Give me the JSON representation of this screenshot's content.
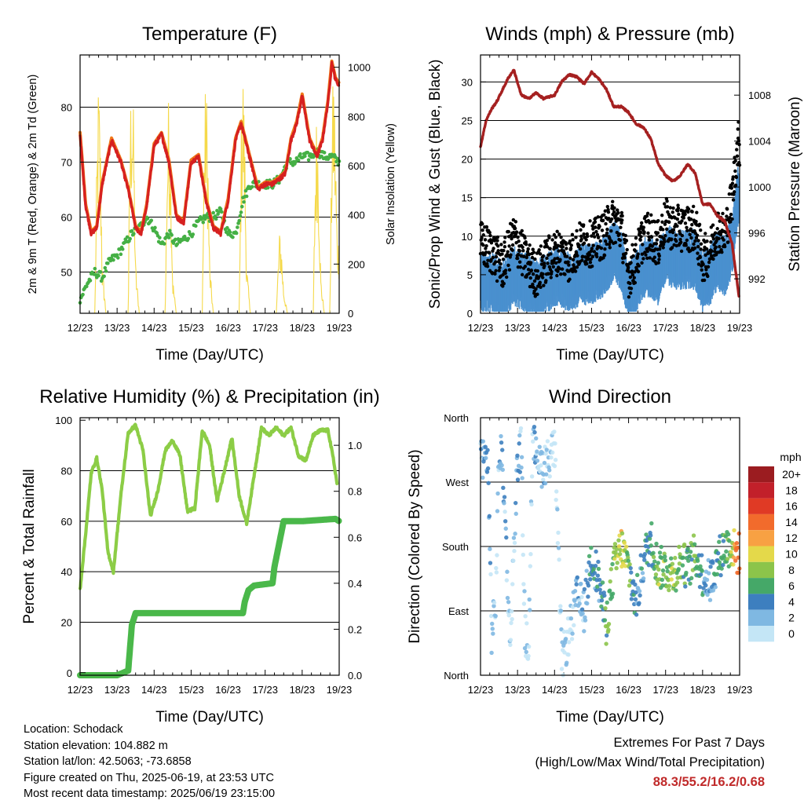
{
  "colors": {
    "temp_red": "#d62020",
    "temp_orange": "#f07a1a",
    "dewpoint_green": "#45b045",
    "solar_yellow": "#f5d94a",
    "wind_blue": "#4a90cf",
    "gust_black": "#000000",
    "pressure_maroon": "#a52020",
    "rh_lightgreen": "#8ccd46",
    "precip_green": "#4ab84a",
    "extremes_red": "#c02a2a"
  },
  "x_ticks": [
    "12/23",
    "13/23",
    "14/23",
    "15/23",
    "16/23",
    "17/23",
    "18/23",
    "19/23"
  ],
  "x_label": "Time (Day/UTC)",
  "chart_data": [
    {
      "id": "temperature",
      "type": "line",
      "title": "Temperature (F)",
      "xlabel": "Time (Day/UTC)",
      "ylabel": "2m & 9m T (Red, Orange) & 2m Td (Green)",
      "ylabel_right": "Solar Insolation (Yellow)",
      "ylim": [
        42.5,
        89.5
      ],
      "y_ticks": [
        50,
        60,
        70,
        80
      ],
      "ylim_right": [
        0,
        1050
      ],
      "y_ticks_right": [
        0,
        200,
        400,
        600,
        800,
        1000
      ],
      "grid": true,
      "series": [
        {
          "key": "temp",
          "x": [
            12.0,
            12.15,
            12.3,
            12.45,
            12.6,
            12.85,
            13.1,
            13.3,
            13.5,
            13.65,
            13.8,
            14.0,
            14.2,
            14.4,
            14.6,
            14.8,
            15.0,
            15.2,
            15.4,
            15.6,
            15.8,
            16.0,
            16.2,
            16.35,
            16.5,
            16.65,
            16.8,
            17.0,
            17.2,
            17.4,
            17.55,
            17.7,
            17.85,
            18.0,
            18.2,
            18.4,
            18.55,
            18.7,
            18.8,
            18.9,
            19.0
          ],
          "y": [
            75,
            62,
            57,
            58,
            66,
            74,
            70,
            65,
            58,
            57,
            62,
            73,
            75,
            70,
            60,
            59,
            70,
            71,
            63,
            58,
            57,
            63,
            74,
            77,
            73,
            69,
            65,
            66,
            66,
            67,
            68,
            74,
            77,
            82,
            74,
            71,
            74,
            81,
            88,
            85,
            84
          ]
        },
        {
          "key": "dewpoint",
          "x": [
            12.0,
            12.2,
            12.4,
            12.6,
            12.8,
            13.0,
            13.2,
            13.4,
            13.6,
            13.8,
            14.0,
            14.2,
            14.4,
            14.6,
            14.8,
            15.0,
            15.2,
            15.4,
            15.6,
            15.8,
            16.0,
            16.2,
            16.4,
            16.6,
            16.8,
            17.0,
            17.2,
            17.4,
            17.6,
            17.8,
            18.0,
            18.2,
            18.4,
            18.6,
            18.8,
            19.0
          ],
          "y": [
            45,
            48,
            50,
            49,
            52,
            53,
            55,
            57,
            58,
            60,
            58,
            55,
            57,
            55,
            56,
            57,
            59,
            60,
            60,
            61,
            57,
            57,
            63,
            66,
            66,
            66,
            66,
            67,
            70,
            70,
            71,
            71,
            72,
            71,
            71,
            70
          ]
        },
        {
          "key": "solar",
          "x": [
            12.0,
            12.4,
            12.45,
            12.5,
            12.55,
            12.6,
            12.7,
            13.3,
            13.35,
            13.4,
            13.45,
            13.5,
            13.6,
            14.3,
            14.35,
            14.4,
            14.45,
            14.5,
            14.6,
            15.3,
            15.35,
            15.4,
            15.45,
            15.5,
            15.6,
            16.3,
            16.35,
            16.4,
            16.45,
            16.5,
            16.6,
            17.3,
            17.35,
            17.4,
            17.45,
            17.5,
            17.6,
            18.3,
            18.35,
            18.4,
            18.45,
            18.5,
            18.6,
            18.75,
            18.8,
            18.85,
            18.9,
            18.95
          ],
          "y": [
            0,
            0,
            600,
            950,
            700,
            200,
            0,
            0,
            800,
            1000,
            750,
            200,
            0,
            0,
            650,
            900,
            700,
            150,
            0,
            0,
            700,
            950,
            720,
            200,
            0,
            0,
            750,
            1000,
            700,
            200,
            0,
            0,
            200,
            350,
            250,
            100,
            0,
            0,
            600,
            850,
            600,
            150,
            0,
            0,
            750,
            1000,
            700,
            300
          ]
        }
      ]
    },
    {
      "id": "winds",
      "type": "scatter",
      "title": "Winds (mph) & Pressure (mb)",
      "xlabel": "Time (Day/UTC)",
      "ylabel": "Sonic/Prop Wind & Gust (Blue, Black)",
      "ylabel_right": "Station Pressure (Maroon)",
      "ylim": [
        0,
        33.5
      ],
      "y_ticks": [
        0,
        5,
        10,
        15,
        20,
        25,
        30
      ],
      "ylim_right": [
        989.0,
        1011.5
      ],
      "y_ticks_right": [
        992,
        996,
        1000,
        1004,
        1008
      ],
      "grid": true,
      "series": [
        {
          "key": "wind",
          "x": [
            12.0,
            12.3,
            12.6,
            12.9,
            13.2,
            13.5,
            13.8,
            14.1,
            14.4,
            14.7,
            15.0,
            15.3,
            15.6,
            15.8,
            16.0,
            16.2,
            16.4,
            16.6,
            16.8,
            17.0,
            17.2,
            17.4,
            17.6,
            17.8,
            18.0,
            18.2,
            18.4,
            18.6,
            18.8,
            18.95
          ],
          "y": [
            3,
            3,
            2,
            4,
            3,
            2,
            3,
            4,
            3,
            4,
            4,
            5,
            7,
            6,
            2,
            3,
            5,
            5,
            4,
            7,
            6,
            6,
            6,
            6,
            3,
            4,
            6,
            5,
            8,
            14
          ]
        },
        {
          "key": "gust",
          "x": [
            12.0,
            12.3,
            12.6,
            12.9,
            13.2,
            13.5,
            13.8,
            14.1,
            14.4,
            14.7,
            15.0,
            15.3,
            15.6,
            15.8,
            16.0,
            16.2,
            16.4,
            16.6,
            16.8,
            17.0,
            17.2,
            17.4,
            17.6,
            17.8,
            18.0,
            18.2,
            18.4,
            18.6,
            18.8,
            18.95
          ],
          "y": [
            9,
            8,
            6,
            10,
            7,
            5,
            7,
            8,
            7,
            9,
            9,
            10,
            12,
            11,
            5,
            7,
            10,
            10,
            9,
            12,
            11,
            11,
            11,
            11,
            7,
            8,
            11,
            10,
            15,
            22
          ]
        },
        {
          "key": "pressure",
          "x": [
            12.0,
            12.15,
            12.3,
            12.45,
            12.6,
            12.75,
            12.9,
            13.1,
            13.3,
            13.5,
            13.7,
            14.0,
            14.2,
            14.4,
            14.6,
            14.8,
            15.0,
            15.2,
            15.4,
            15.6,
            15.8,
            16.0,
            16.2,
            16.4,
            16.6,
            16.8,
            17.0,
            17.2,
            17.4,
            17.6,
            17.8,
            18.0,
            18.2,
            18.4,
            18.6,
            18.8,
            18.9,
            18.98
          ],
          "y": [
            1003.5,
            1005.8,
            1006.8,
            1007.5,
            1008.5,
            1009.5,
            1010.2,
            1008.0,
            1007.7,
            1008.2,
            1007.7,
            1008.0,
            1009.2,
            1009.8,
            1009.6,
            1009.0,
            1010.0,
            1009.4,
            1008.5,
            1007.0,
            1007.0,
            1006.5,
            1005.5,
            1005.2,
            1004.2,
            1002.0,
            1001.0,
            1000.5,
            1001.0,
            1002.0,
            1001.2,
            998.5,
            998.5,
            997.5,
            997.0,
            995.0,
            992.5,
            990.5
          ]
        }
      ]
    },
    {
      "id": "humidity",
      "type": "line",
      "title": "Relative Humidity (%) & Precipitation (in)",
      "xlabel": "Time (Day/UTC)",
      "ylabel": "Percent & Total Rainfall",
      "ylim": [
        -1,
        101
      ],
      "y_ticks": [
        0,
        20,
        40,
        60,
        80,
        100
      ],
      "ylim_right": [
        0,
        1.12
      ],
      "y_ticks_right": [
        "0.0",
        "0.2",
        "0.4",
        "0.6",
        "0.8",
        "1.0"
      ],
      "grid": true,
      "series": [
        {
          "key": "rh",
          "x": [
            12.0,
            12.15,
            12.3,
            12.45,
            12.6,
            12.75,
            12.9,
            13.1,
            13.3,
            13.5,
            13.7,
            13.9,
            14.1,
            14.3,
            14.5,
            14.7,
            14.9,
            15.1,
            15.3,
            15.5,
            15.7,
            15.9,
            16.1,
            16.3,
            16.5,
            16.7,
            16.9,
            17.1,
            17.3,
            17.5,
            17.7,
            17.9,
            18.1,
            18.3,
            18.5,
            18.7,
            18.85,
            18.95
          ],
          "y": [
            33,
            55,
            79,
            85,
            72,
            48,
            40,
            70,
            95,
            98,
            88,
            62,
            72,
            88,
            92,
            86,
            64,
            65,
            96,
            90,
            68,
            80,
            93,
            70,
            59,
            78,
            97,
            94,
            97,
            94,
            97,
            86,
            84,
            94,
            96,
            96,
            84,
            74
          ]
        },
        {
          "key": "precip",
          "x": [
            12.0,
            13.0,
            13.3,
            13.35,
            13.4,
            13.5,
            16.4,
            16.45,
            16.55,
            16.7,
            17.2,
            17.25,
            17.35,
            17.5,
            18.0,
            18.9,
            19.0
          ],
          "y": [
            0.0,
            0.0,
            0.02,
            0.12,
            0.22,
            0.27,
            0.27,
            0.32,
            0.37,
            0.39,
            0.4,
            0.47,
            0.55,
            0.67,
            0.67,
            0.68,
            0.67
          ]
        }
      ]
    },
    {
      "id": "direction",
      "type": "scatter",
      "title": "Wind Direction",
      "xlabel": "Time (Day/UTC)",
      "ylabel": "Direction (Colored By Speed)",
      "y_categories": [
        "North",
        "West",
        "South",
        "East",
        "North"
      ],
      "ylim": [
        0,
        360
      ],
      "grid": true,
      "legend_title": "mph",
      "legend_labels": [
        "20+",
        "18",
        "16",
        "14",
        "12",
        "10",
        "8",
        "6",
        "4",
        "2",
        "0"
      ],
      "legend_colors": [
        "#9b1c20",
        "#c2202a",
        "#e03a25",
        "#f26b2c",
        "#f8a143",
        "#e4d94a",
        "#8cc44a",
        "#45a868",
        "#3d7fbf",
        "#7fb8e2",
        "#c4e6f6"
      ],
      "series": [
        {
          "key": "direction",
          "x": [
            12.0,
            12.1,
            12.2,
            12.3,
            12.4,
            12.5,
            12.6,
            12.8,
            13.0,
            13.1,
            13.2,
            13.3,
            13.4,
            13.5,
            13.6,
            13.8,
            14.0,
            14.2,
            14.4,
            14.6,
            14.8,
            15.0,
            15.2,
            15.4,
            15.6,
            15.8,
            16.0,
            16.2,
            16.4,
            16.6,
            16.8,
            17.0,
            17.2,
            17.4,
            17.6,
            17.8,
            18.0,
            18.2,
            18.4,
            18.6,
            18.8,
            18.9
          ],
          "y": [
            315,
            300,
            305,
            60,
            90,
            310,
            300,
            40,
            300,
            320,
            60,
            30,
            310,
            330,
            290,
            300,
            320,
            20,
            60,
            110,
            90,
            170,
            130,
            70,
            150,
            180,
            150,
            100,
            160,
            190,
            150,
            150,
            140,
            160,
            150,
            170,
            140,
            130,
            160,
            180,
            180,
            170
          ],
          "speed": [
            3,
            4,
            4,
            2,
            1,
            3,
            4,
            1,
            4,
            3,
            2,
            1,
            3,
            2,
            3,
            2,
            2,
            1,
            1,
            4,
            3,
            6,
            5,
            7,
            8,
            11,
            8,
            4,
            5,
            7,
            9,
            8,
            9,
            8,
            6,
            9,
            5,
            4,
            6,
            7,
            9,
            14
          ]
        }
      ]
    }
  ],
  "info": {
    "location": "Location: Schodack",
    "elevation": "Station elevation: 104.882 m",
    "latlon": "Station lat/lon: 42.5063; -73.6858",
    "created": "Figure created on Thu, 2025-06-19, at 23:53 UTC",
    "latest": "Most recent data timestamp: 2025/06/19 23:15:00"
  },
  "extremes": {
    "title": "Extremes For Past 7 Days",
    "subtitle": "(High/Low/Max Wind/Total Precipitation)",
    "values": "88.3/55.2/16.2/0.68"
  }
}
